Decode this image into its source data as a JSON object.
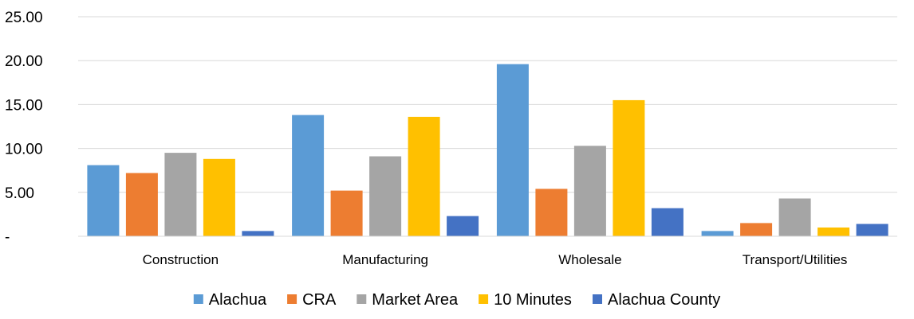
{
  "chart_data": {
    "type": "bar",
    "categories": [
      "Construction",
      "Manufacturing",
      "Wholesale",
      "Transport/Utilities"
    ],
    "series": [
      {
        "name": "Alachua",
        "color": "#5B9BD5",
        "values": [
          8.1,
          13.8,
          19.6,
          0.6
        ]
      },
      {
        "name": "CRA",
        "color": "#ED7D31",
        "values": [
          7.2,
          5.2,
          5.4,
          1.5
        ]
      },
      {
        "name": "Market Area",
        "color": "#A5A5A5",
        "values": [
          9.5,
          9.1,
          10.3,
          4.3
        ]
      },
      {
        "name": "10 Minutes",
        "color": "#FFC000",
        "values": [
          8.8,
          13.6,
          15.5,
          1.0
        ]
      },
      {
        "name": "Alachua County",
        "color": "#4472C4",
        "values": [
          0.6,
          2.3,
          3.2,
          1.4
        ]
      }
    ],
    "y_ticks": [
      {
        "value": 0,
        "label": "-"
      },
      {
        "value": 5,
        "label": "5.00"
      },
      {
        "value": 10,
        "label": "10.00"
      },
      {
        "value": 15,
        "label": "15.00"
      },
      {
        "value": 20,
        "label": "20.00"
      },
      {
        "value": 25,
        "label": "25.00"
      }
    ],
    "ylim": [
      0,
      25
    ],
    "grid": true,
    "legend_position": "bottom",
    "title": "",
    "xlabel": "",
    "ylabel": ""
  }
}
